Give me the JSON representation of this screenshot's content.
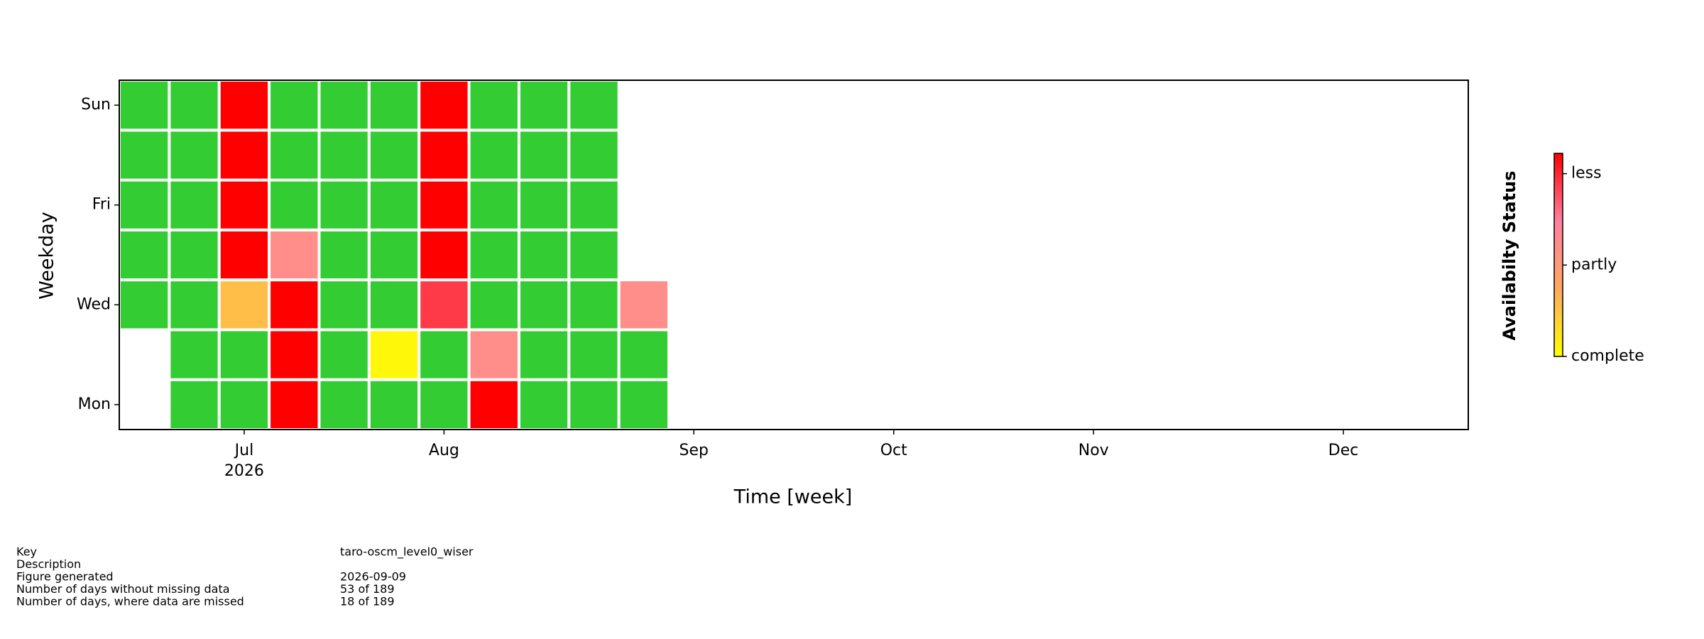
{
  "chart_data": {
    "type": "heatmap",
    "x_label": "Time [week]",
    "y_label": "Weekday",
    "colorbar_label": "Availabilty Status",
    "weekdays": [
      "Mon",
      null,
      "Wed",
      null,
      "Fri",
      null,
      "Sun"
    ],
    "xlim": [
      -0.5,
      26.5
    ],
    "xticks": [
      {
        "value": 2,
        "label": "Jul"
      },
      {
        "value": 6,
        "label": "Aug"
      },
      {
        "value": 11,
        "label": "Sep"
      },
      {
        "value": 15,
        "label": "Oct"
      },
      {
        "value": 19,
        "label": "Nov"
      },
      {
        "value": 24,
        "label": "Dec"
      }
    ],
    "x_offset_label": "2026",
    "values": [
      [
        null,
        0,
        0,
        1,
        0,
        0,
        0,
        1,
        0,
        0,
        0
      ],
      [
        null,
        0,
        0,
        1,
        0,
        0.03,
        0,
        0.55,
        0,
        0,
        0
      ],
      [
        0,
        0,
        0.25,
        1,
        0,
        0,
        0.85,
        0,
        0,
        0,
        0.55
      ],
      [
        0,
        0,
        1,
        0.55,
        0,
        0,
        1,
        0,
        0,
        0,
        null
      ],
      [
        0,
        0,
        1,
        0,
        0,
        0,
        1,
        0,
        0,
        0,
        null
      ],
      [
        0,
        0,
        1,
        0,
        0,
        0,
        1,
        0,
        0,
        0,
        null
      ],
      [
        0,
        0,
        1,
        0,
        0,
        0,
        1,
        0,
        0,
        0,
        null
      ]
    ],
    "full_color": "#33cc33",
    "colormap": [
      "#ffff00",
      "#ffa860",
      "#ff80a0",
      "#ff0000"
    ],
    "clim": [
      0,
      1
    ],
    "cticks": [
      {
        "value": 0,
        "label": "complete"
      },
      {
        "value": 0.45,
        "label": "partly"
      },
      {
        "value": 0.9,
        "label": "less"
      }
    ]
  },
  "info": {
    "labels": [
      "Key",
      "Description",
      "Figure generated",
      "Number of days without missing data",
      "Number of days, where data are missed"
    ],
    "values": [
      "taro-oscm_level0_wiser",
      null,
      "2026-09-09",
      "53 of 189",
      "18 of 189"
    ]
  }
}
